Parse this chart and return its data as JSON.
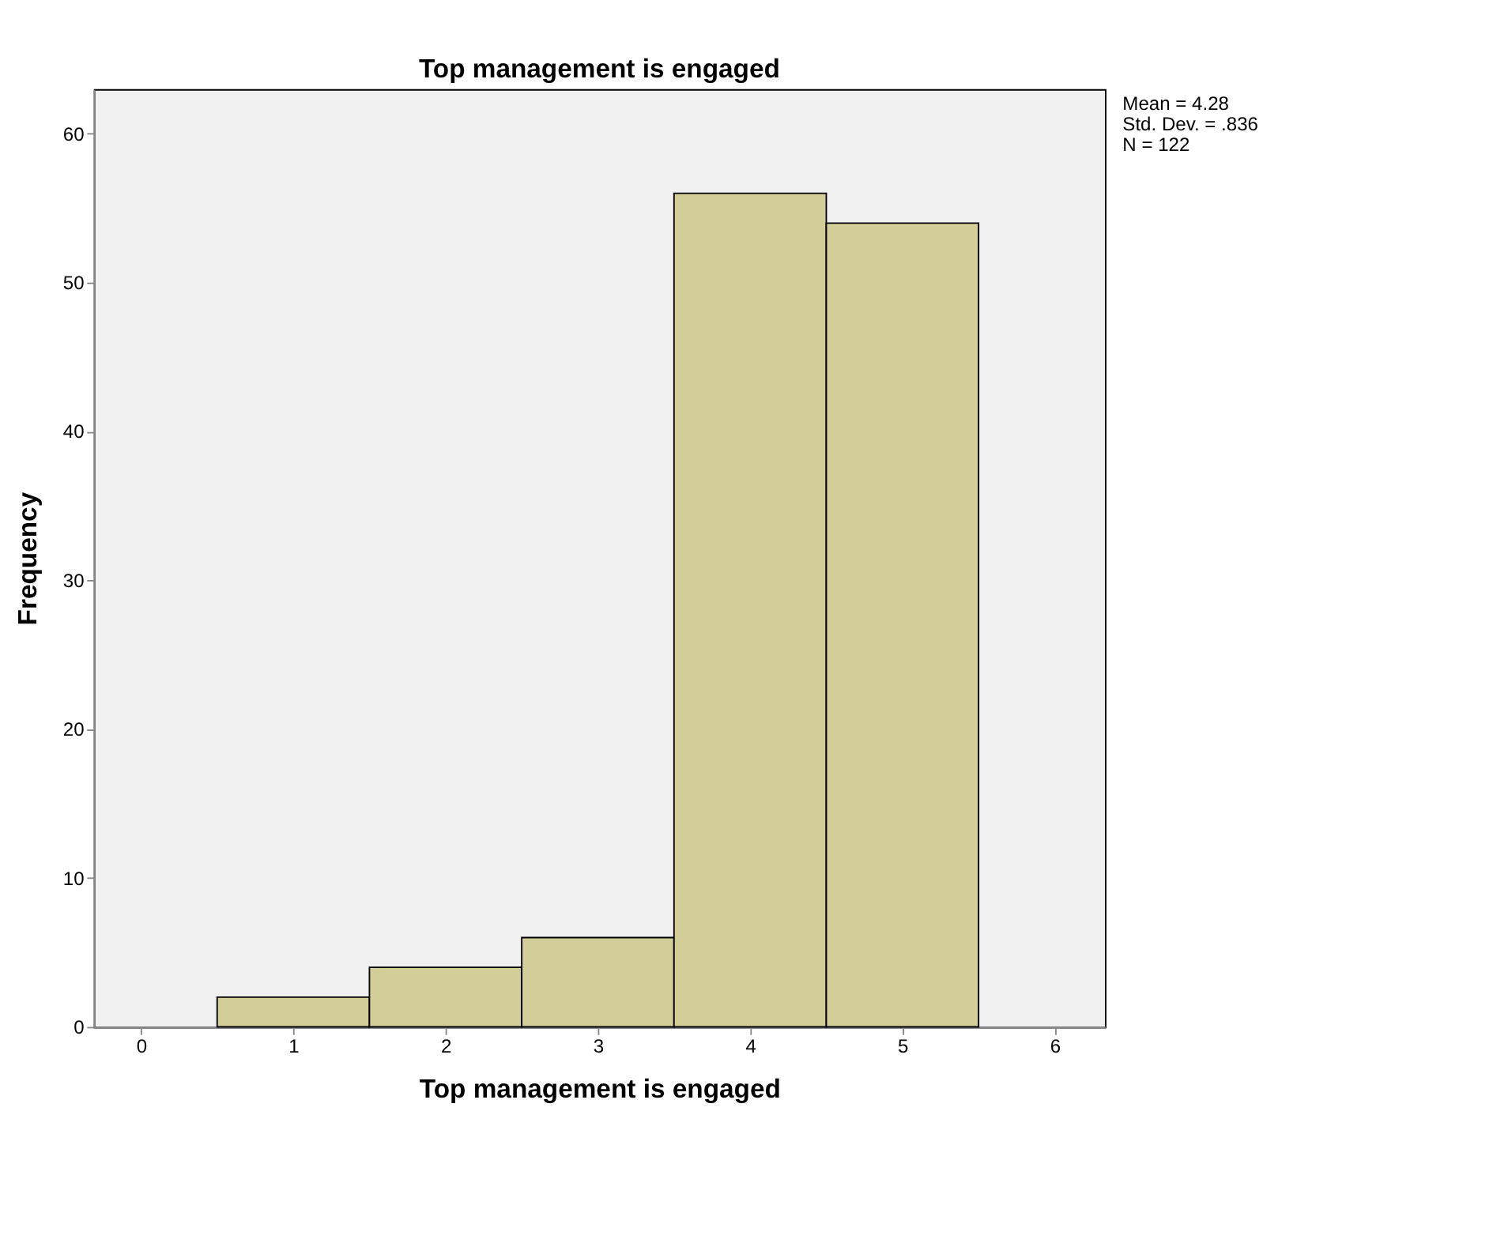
{
  "chart_data": {
    "type": "histogram",
    "title": "Top management is engaged",
    "xlabel": "Top management is engaged",
    "ylabel": "Frequency",
    "bins": [
      0.5,
      1.5,
      2.5,
      3.5,
      4.5,
      5.5
    ],
    "values": [
      2,
      4,
      6,
      56,
      54
    ],
    "color": "#d3ce97",
    "xlim": [
      -0.31,
      6.33
    ],
    "xticks": [
      0,
      1,
      2,
      3,
      4,
      5,
      6
    ],
    "ylim": [
      0,
      63
    ],
    "yticks": [
      0,
      10,
      20,
      30,
      40,
      50,
      60
    ],
    "grid": false,
    "annotations": [
      "Mean = 4.28",
      "Std. Dev. = .836",
      "N = 122"
    ]
  }
}
